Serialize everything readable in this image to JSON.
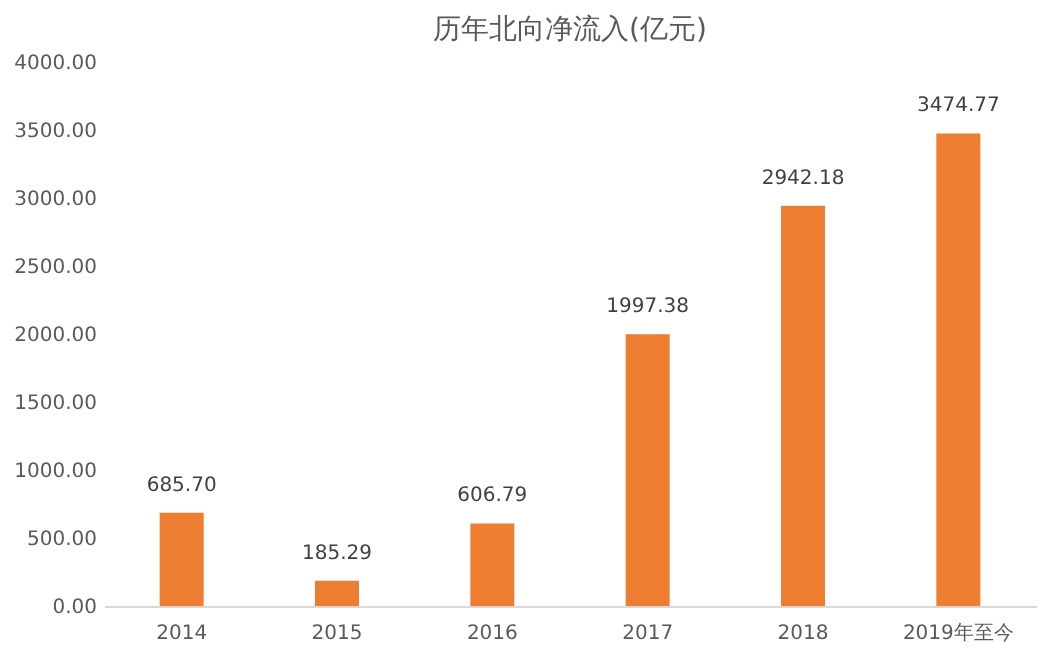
{
  "chart_data": {
    "type": "bar",
    "title": "历年北向净流入(亿元)",
    "categories": [
      "2014",
      "2015",
      "2016",
      "2017",
      "2018",
      "2019年至今"
    ],
    "values": [
      685.7,
      185.29,
      606.79,
      1997.38,
      2942.18,
      3474.77
    ],
    "value_labels": [
      "685.70",
      "185.29",
      "606.79",
      "1997.38",
      "2942.18",
      "3474.77"
    ],
    "color": "#ed7d31",
    "ylim": [
      0,
      4000
    ],
    "yticks": [
      {
        "value": 0,
        "label": "0.00"
      },
      {
        "value": 500,
        "label": "500.00"
      },
      {
        "value": 1000,
        "label": "1000.00"
      },
      {
        "value": 1500,
        "label": "1500.00"
      },
      {
        "value": 2000,
        "label": "2000.00"
      },
      {
        "value": 2500,
        "label": "2500.00"
      },
      {
        "value": 3000,
        "label": "3000.00"
      },
      {
        "value": 3500,
        "label": "3500.00"
      },
      {
        "value": 4000,
        "label": "4000.00"
      }
    ],
    "grid": false
  }
}
